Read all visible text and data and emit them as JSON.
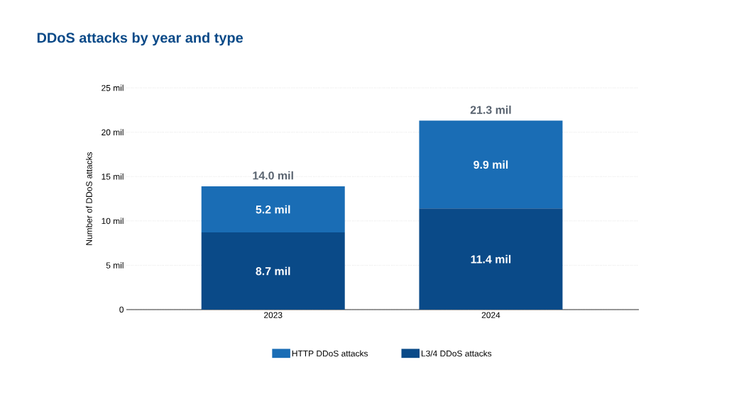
{
  "chart_data": {
    "type": "bar",
    "title": "DDoS attacks by year and type",
    "ylabel": "Number of DDoS attacks",
    "categories": [
      "2023",
      "2024"
    ],
    "series": [
      {
        "name": "L3/4 DDoS attacks",
        "color": "#0a4a88",
        "values": [
          8.7,
          11.4
        ],
        "value_labels": [
          "8.7 mil",
          "11.4 mil"
        ]
      },
      {
        "name": "HTTP DDoS attacks",
        "color": "#1a6db5",
        "values": [
          5.2,
          9.9
        ],
        "value_labels": [
          "5.2 mil",
          "9.9 mil"
        ]
      }
    ],
    "stacked": true,
    "totals": [
      "14.0 mil",
      "21.3 mil"
    ],
    "ylim": [
      0,
      25
    ],
    "yticks": [
      0,
      {
        "value": 5,
        "label": "5 mil"
      },
      {
        "value": 10,
        "label": "10 mil"
      },
      {
        "value": 15,
        "label": "15 mil"
      },
      {
        "value": 20,
        "label": "20 mil"
      },
      {
        "value": 25,
        "label": "25 mil"
      }
    ],
    "grid": "y",
    "legend": "bottom"
  }
}
